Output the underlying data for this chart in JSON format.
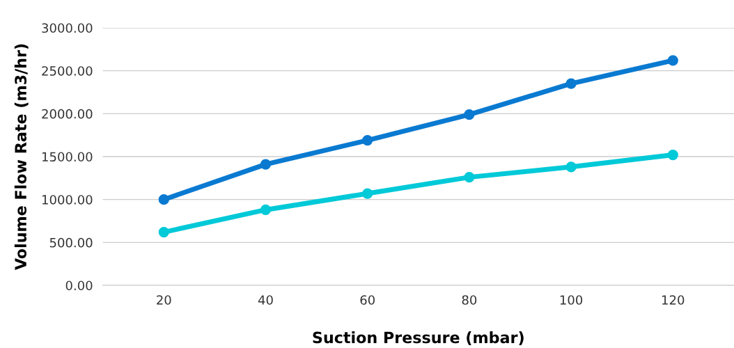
{
  "chart_data": {
    "type": "line",
    "xlabel": "Suction Pressure (mbar)",
    "ylabel": "Volume Flow Rate (m3/hr)",
    "categories": [
      "20",
      "40",
      "60",
      "80",
      "100",
      "120"
    ],
    "series": [
      {
        "color": "#00c9d8",
        "values": [
          620,
          880,
          1070,
          1260,
          1380,
          1520
        ]
      },
      {
        "color": "#0a7ad1",
        "values": [
          1000,
          1410,
          1690,
          1990,
          2350,
          2620
        ]
      }
    ],
    "ylim": [
      0,
      3000
    ],
    "yticks": [
      {
        "value": 0,
        "label": "0.00"
      },
      {
        "value": 500,
        "label": "500.00"
      },
      {
        "value": 1000,
        "label": "1000.00"
      },
      {
        "value": 1500,
        "label": "1500.00"
      },
      {
        "value": 2000,
        "label": "2000.00"
      },
      {
        "value": 2500,
        "label": "2500.00"
      },
      {
        "value": 3000,
        "label": "3000.00"
      }
    ],
    "grid": "y",
    "marker": "circle",
    "line_style": "solid"
  }
}
